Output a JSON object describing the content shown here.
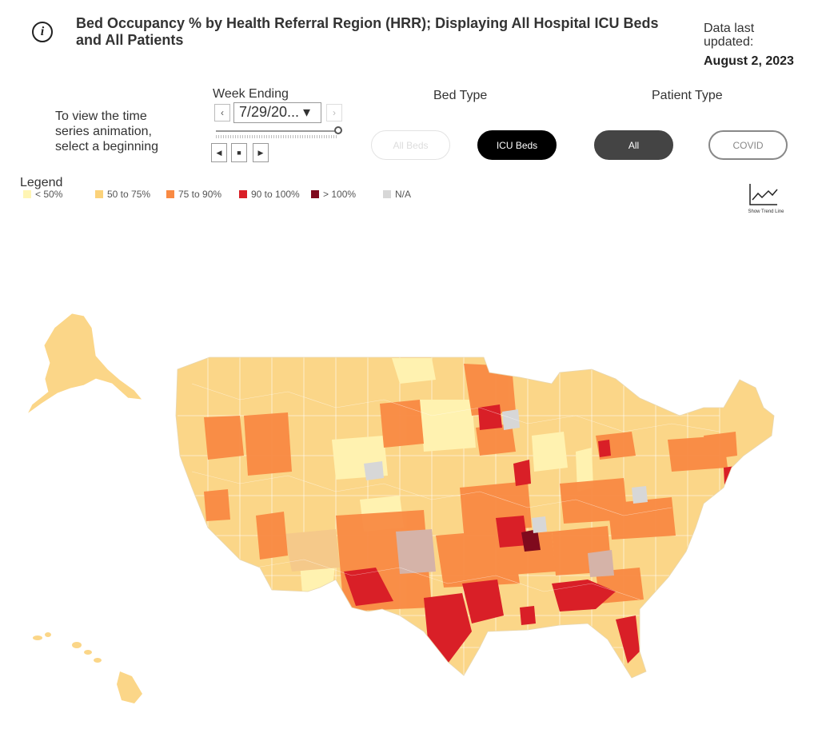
{
  "header": {
    "info_icon": "i",
    "title": "Bed Occupancy % by Health Referral Region (HRR); Displaying All Hospital ICU Beds and All Patients",
    "updated_label": "Data last updated:",
    "updated_date": "August 2, 2023"
  },
  "controls": {
    "hint": "To view the time series animation, select a beginning",
    "week_label": "Week Ending",
    "week_value": "7/29/20... ▾",
    "prev_icon": "chevron-left",
    "next_icon": "chevron-right",
    "bed_type_label": "Bed Type",
    "patient_type_label": "Patient Type",
    "bed_types": [
      "All Beds",
      "ICU Beds"
    ],
    "bed_type_selected": "ICU Beds",
    "patient_types": [
      "All",
      "COVID"
    ],
    "patient_type_selected": "All"
  },
  "legend": {
    "title": "Legend",
    "items": [
      {
        "label": "< 50%",
        "color": "#fff5b4"
      },
      {
        "label": "50 to 75%",
        "color": "#fbd27a"
      },
      {
        "label": "75 to 90%",
        "color": "#f98a43"
      },
      {
        "label": "90 to 100%",
        "color": "#d91f27"
      },
      {
        "label": "> 100%",
        "color": "#7f0a1d"
      },
      {
        "label": "N/A",
        "color": "#d7d7d7"
      }
    ]
  },
  "trend": {
    "label": "Show Trend Line",
    "icon": "trend-line-icon"
  },
  "map": {
    "region": "United States HRR choropleth",
    "base_color": "#fbd688"
  }
}
